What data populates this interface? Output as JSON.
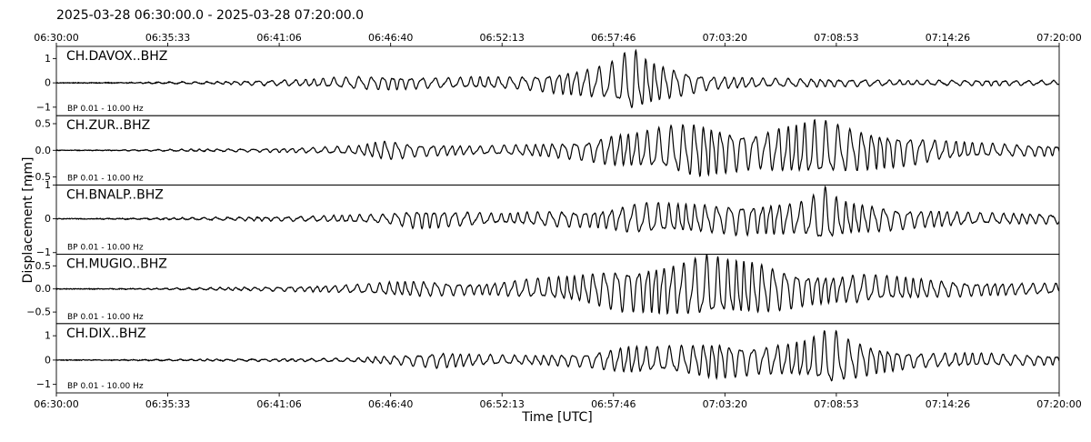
{
  "chart_data": {
    "type": "line",
    "title": "2025-03-28 06:30:00.0 - 2025-03-28 07:20:00.0",
    "xlabel": "Time [UTC]",
    "ylabel": "Displacement [mm]",
    "x_tick_labels": [
      "06:30:00",
      "06:35:33",
      "06:41:06",
      "06:46:40",
      "06:52:13",
      "06:57:46",
      "07:03:20",
      "07:08:53",
      "07:14:26",
      "07:20:00"
    ],
    "x_range": [
      "06:30:00",
      "07:20:00"
    ],
    "grid": false,
    "series": [
      {
        "name": "CH.DAVOX..BHZ",
        "filter": "BP 0.01 - 10.00 Hz",
        "ylim": [
          -1.35,
          1.5
        ],
        "y_ticks": [
          -1,
          0,
          1
        ],
        "y_tick_labels": [
          "−1",
          "0",
          "1"
        ],
        "envelope": [
          [
            0,
            0.0
          ],
          [
            6,
            0.01
          ],
          [
            12,
            0.04
          ],
          [
            17,
            0.06
          ],
          [
            20,
            0.1
          ],
          [
            25,
            0.15
          ],
          [
            30,
            0.28
          ],
          [
            33,
            0.3
          ],
          [
            36,
            0.25
          ],
          [
            39,
            0.22
          ],
          [
            42,
            0.25
          ],
          [
            44,
            0.25
          ],
          [
            47,
            0.3
          ],
          [
            49,
            0.4
          ],
          [
            52,
            0.55
          ],
          [
            54,
            0.7
          ],
          [
            55.3,
            0.85
          ],
          [
            56.5,
            1.2
          ],
          [
            57.5,
            1.5
          ],
          [
            58.5,
            1.1
          ],
          [
            60,
            0.8
          ],
          [
            62,
            0.6
          ],
          [
            65,
            0.3
          ],
          [
            70,
            0.2
          ],
          [
            80,
            0.15
          ],
          [
            85,
            0.1
          ],
          [
            90,
            0.12
          ],
          [
            100,
            0.1
          ]
        ],
        "noise": 0.015,
        "cycle_percent": 1.05
      },
      {
        "name": "CH.ZUR..BHZ",
        "filter": "BP 0.01 - 10.00 Hz",
        "ylim": [
          -0.65,
          0.65
        ],
        "y_ticks": [
          -0.5,
          0.0,
          0.5
        ],
        "y_tick_labels": [
          "−0.5",
          "0.0",
          "0.5"
        ],
        "envelope": [
          [
            0,
            0.0
          ],
          [
            6,
            0.005
          ],
          [
            12,
            0.02
          ],
          [
            20,
            0.03
          ],
          [
            25,
            0.05
          ],
          [
            30,
            0.09
          ],
          [
            33,
            0.2
          ],
          [
            36,
            0.12
          ],
          [
            39,
            0.1
          ],
          [
            42,
            0.08
          ],
          [
            45,
            0.1
          ],
          [
            48,
            0.12
          ],
          [
            50,
            0.15
          ],
          [
            53,
            0.2
          ],
          [
            55,
            0.3
          ],
          [
            58,
            0.35
          ],
          [
            62,
            0.5
          ],
          [
            64,
            0.55
          ],
          [
            66,
            0.45
          ],
          [
            68,
            0.4
          ],
          [
            70,
            0.35
          ],
          [
            72,
            0.45
          ],
          [
            74,
            0.5
          ],
          [
            75,
            0.55
          ],
          [
            76,
            0.6
          ],
          [
            77,
            0.55
          ],
          [
            79,
            0.45
          ],
          [
            82,
            0.35
          ],
          [
            85,
            0.3
          ],
          [
            88,
            0.2
          ],
          [
            91,
            0.15
          ],
          [
            95,
            0.12
          ],
          [
            100,
            0.1
          ]
        ],
        "noise": 0.006,
        "cycle_percent": 1.0
      },
      {
        "name": "CH.BNALP..BHZ",
        "filter": "BP 0.01 - 10.00 Hz",
        "ylim": [
          -1.05,
          1.0
        ],
        "y_ticks": [
          -1,
          0,
          1
        ],
        "y_tick_labels": [
          "−1",
          "0",
          "1"
        ],
        "envelope": [
          [
            0,
            0.0
          ],
          [
            6,
            0.01
          ],
          [
            12,
            0.03
          ],
          [
            20,
            0.06
          ],
          [
            25,
            0.08
          ],
          [
            30,
            0.12
          ],
          [
            33,
            0.15
          ],
          [
            36,
            0.3
          ],
          [
            39,
            0.25
          ],
          [
            42,
            0.2
          ],
          [
            44,
            0.15
          ],
          [
            47,
            0.2
          ],
          [
            50,
            0.25
          ],
          [
            53,
            0.25
          ],
          [
            55,
            0.3
          ],
          [
            57,
            0.45
          ],
          [
            59,
            0.5
          ],
          [
            62,
            0.45
          ],
          [
            66,
            0.45
          ],
          [
            68,
            0.5
          ],
          [
            70,
            0.45
          ],
          [
            72,
            0.5
          ],
          [
            74,
            0.5
          ],
          [
            75.5,
            0.7
          ],
          [
            76.5,
            1.0
          ],
          [
            77.5,
            0.7
          ],
          [
            79,
            0.5
          ],
          [
            82,
            0.4
          ],
          [
            85,
            0.3
          ],
          [
            88,
            0.25
          ],
          [
            92,
            0.18
          ],
          [
            100,
            0.15
          ]
        ],
        "noise": 0.012,
        "cycle_percent": 1.0
      },
      {
        "name": "CH.MUGIO..BHZ",
        "filter": "BP 0.01 - 10.00 Hz",
        "ylim": [
          -0.75,
          0.75
        ],
        "y_ticks": [
          -0.5,
          0.0,
          0.5
        ],
        "y_tick_labels": [
          "−0.5",
          "0.0",
          "0.5"
        ],
        "envelope": [
          [
            0,
            0.0
          ],
          [
            6,
            0.005
          ],
          [
            12,
            0.02
          ],
          [
            20,
            0.04
          ],
          [
            25,
            0.06
          ],
          [
            30,
            0.1
          ],
          [
            33,
            0.15
          ],
          [
            36,
            0.18
          ],
          [
            39,
            0.15
          ],
          [
            42,
            0.12
          ],
          [
            44,
            0.15
          ],
          [
            46,
            0.2
          ],
          [
            49,
            0.25
          ],
          [
            52,
            0.3
          ],
          [
            54,
            0.4
          ],
          [
            56,
            0.5
          ],
          [
            58,
            0.5
          ],
          [
            60,
            0.55
          ],
          [
            62,
            0.6
          ],
          [
            65,
            0.75
          ],
          [
            67,
            0.65
          ],
          [
            70,
            0.6
          ],
          [
            72,
            0.5
          ],
          [
            75,
            0.35
          ],
          [
            78,
            0.3
          ],
          [
            80,
            0.35
          ],
          [
            82,
            0.3
          ],
          [
            85,
            0.25
          ],
          [
            88,
            0.2
          ],
          [
            92,
            0.15
          ],
          [
            100,
            0.12
          ]
        ],
        "noise": 0.008,
        "cycle_percent": 0.95
      },
      {
        "name": "CH.DIX..BHZ",
        "filter": "BP 0.01 - 10.00 Hz",
        "ylim": [
          -1.35,
          1.5
        ],
        "y_ticks": [
          -1,
          0,
          1
        ],
        "y_tick_labels": [
          "−1",
          "0",
          "1"
        ],
        "envelope": [
          [
            0,
            0.0
          ],
          [
            6,
            0.01
          ],
          [
            12,
            0.03
          ],
          [
            20,
            0.05
          ],
          [
            25,
            0.06
          ],
          [
            30,
            0.09
          ],
          [
            34,
            0.2
          ],
          [
            38,
            0.35
          ],
          [
            42,
            0.25
          ],
          [
            45,
            0.2
          ],
          [
            48,
            0.2
          ],
          [
            50,
            0.25
          ],
          [
            53,
            0.3
          ],
          [
            55,
            0.45
          ],
          [
            57,
            0.6
          ],
          [
            60,
            0.55
          ],
          [
            63,
            0.65
          ],
          [
            66,
            0.8
          ],
          [
            68,
            0.7
          ],
          [
            70,
            0.6
          ],
          [
            73,
            0.7
          ],
          [
            75,
            0.85
          ],
          [
            76.5,
            1.2
          ],
          [
            77.5,
            1.3
          ],
          [
            78.5,
            1.0
          ],
          [
            80,
            0.8
          ],
          [
            82,
            0.55
          ],
          [
            85,
            0.35
          ],
          [
            88,
            0.3
          ],
          [
            91,
            0.3
          ],
          [
            95,
            0.25
          ],
          [
            100,
            0.2
          ]
        ],
        "noise": 0.015,
        "cycle_percent": 1.0
      }
    ]
  }
}
